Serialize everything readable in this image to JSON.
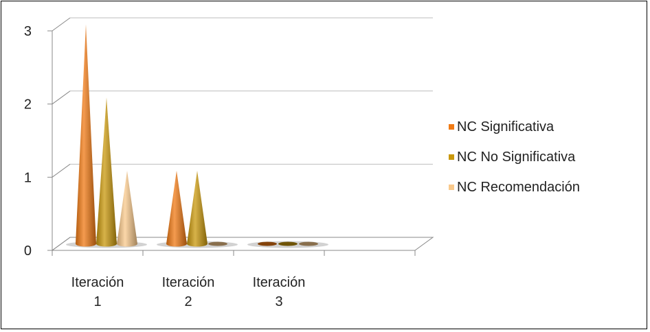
{
  "chart_data": {
    "type": "bar",
    "categories": [
      "Iteración 1",
      "Iteración 2",
      "Iteración 3"
    ],
    "category_lines": [
      [
        "Iteración",
        "1"
      ],
      [
        "Iteración",
        "2"
      ],
      [
        "Iteración",
        "3"
      ]
    ],
    "series": [
      {
        "name": "NC Significativa",
        "values": [
          3,
          1,
          0
        ],
        "color": "#f07a14"
      },
      {
        "name": "NC No Significativa",
        "values": [
          2,
          1,
          0
        ],
        "color": "#c9980c"
      },
      {
        "name": "NC Recomendación",
        "values": [
          1,
          0,
          0
        ],
        "color": "#f9c98c"
      }
    ],
    "ylim": [
      0,
      3
    ],
    "yticks": [
      "0",
      "1",
      "2",
      "3"
    ],
    "mark_shape": "cone",
    "grid": true,
    "legend_position": "right"
  }
}
